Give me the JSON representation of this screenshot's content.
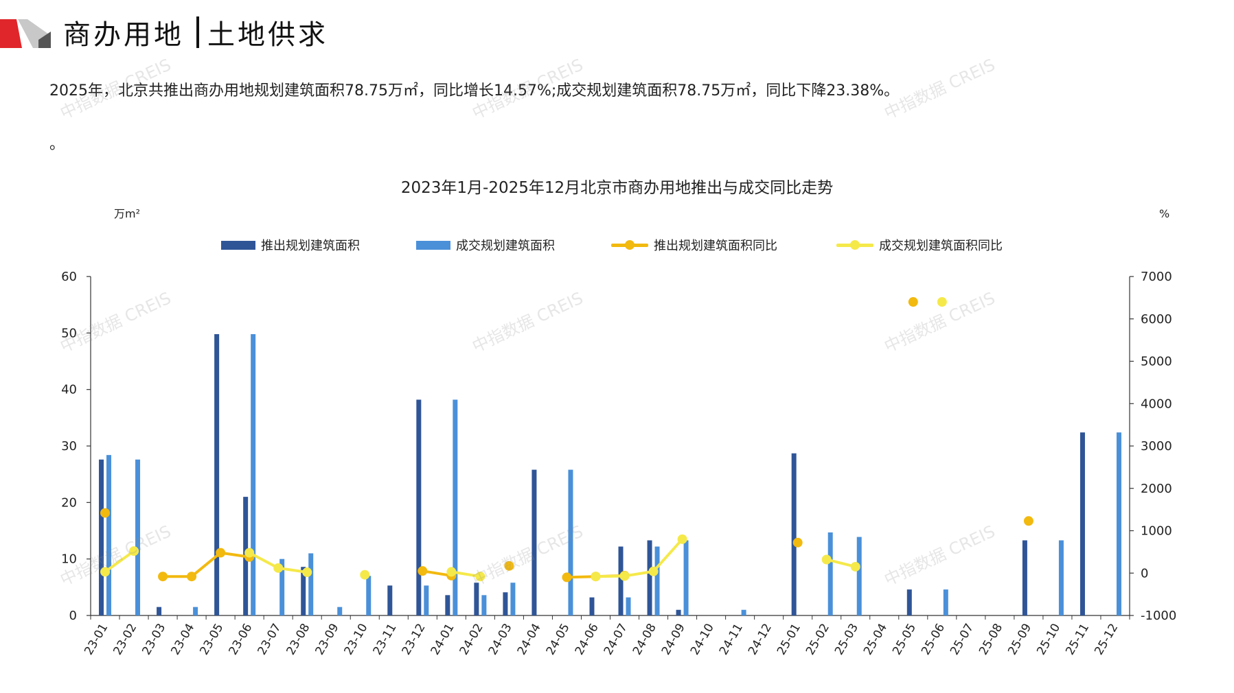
{
  "header": {
    "title_part1": "商办用地",
    "title_part2": "土地供求",
    "accent_color": "#e0262a"
  },
  "summary": "2025年，北京共推出商办用地规划建筑面积78.75万㎡，同比增长14.57%;成交规划建筑面积78.75万㎡，同比下降23.38%。",
  "note_mark": "。",
  "watermark": "中指数据 CREIS",
  "chart_data": {
    "type": "bar",
    "title": "2023年1月-2025年12月北京市商办用地推出与成交同比走势",
    "ylabel_left": "万m²",
    "ylabel_right": "%",
    "ylim_left": [
      0,
      60
    ],
    "yticks_left": [
      0,
      10,
      20,
      30,
      40,
      50,
      60
    ],
    "ylim_right": [
      -1000,
      7000
    ],
    "yticks_right": [
      -1000,
      0,
      1000,
      2000,
      3000,
      4000,
      5000,
      6000,
      7000
    ],
    "legend_position": "top",
    "categories": [
      "23-01",
      "23-02",
      "23-03",
      "23-04",
      "23-05",
      "23-06",
      "23-07",
      "23-08",
      "23-09",
      "23-10",
      "23-11",
      "23-12",
      "24-01",
      "24-02",
      "24-03",
      "24-04",
      "24-05",
      "24-06",
      "24-07",
      "24-08",
      "24-09",
      "24-10",
      "24-11",
      "24-12",
      "25-01",
      "25-02",
      "25-03",
      "25-04",
      "25-05",
      "25-06",
      "25-07",
      "25-08",
      "25-09",
      "25-10",
      "25-11",
      "25-12"
    ],
    "series": [
      {
        "name": "推出规划建筑面积",
        "type": "bar",
        "axis": "left",
        "color": "#2f5597",
        "values": [
          27.6,
          0,
          1.5,
          0,
          49.8,
          21,
          0,
          8.6,
          0,
          0,
          5.3,
          38.2,
          3.6,
          5.8,
          4.1,
          25.8,
          0,
          3.2,
          12.2,
          13.3,
          1.0,
          0,
          0,
          0,
          28.7,
          0,
          0,
          0,
          4.6,
          0,
          0,
          0,
          13.3,
          0,
          32.4,
          0
        ]
      },
      {
        "name": "成交规划建筑面积",
        "type": "bar",
        "axis": "left",
        "color": "#4a90d9",
        "values": [
          28.4,
          27.6,
          0,
          1.5,
          0,
          49.8,
          10.0,
          11.0,
          1.5,
          7.0,
          0,
          5.3,
          38.2,
          3.6,
          5.8,
          0,
          25.8,
          0,
          3.2,
          12.2,
          13.3,
          0,
          1.0,
          0,
          0,
          14.7,
          13.9,
          0,
          0,
          4.6,
          0,
          0,
          0,
          13.3,
          0,
          32.4
        ]
      },
      {
        "name": "推出规划建筑面积同比",
        "type": "line",
        "axis": "right",
        "color": "#f2b90f",
        "values": [
          1420,
          null,
          -80,
          -80,
          480,
          380,
          null,
          null,
          null,
          null,
          null,
          50,
          -60,
          null,
          170,
          null,
          -100,
          -80,
          -60,
          null,
          null,
          null,
          null,
          null,
          720,
          null,
          null,
          null,
          6400,
          null,
          null,
          null,
          1230,
          null,
          null,
          null
        ]
      },
      {
        "name": "成交规划建筑面积同比",
        "type": "line",
        "axis": "right",
        "color": "#f5e94a",
        "values": [
          30,
          520,
          null,
          null,
          null,
          480,
          120,
          20,
          null,
          -40,
          null,
          null,
          30,
          -80,
          null,
          null,
          null,
          -80,
          -70,
          40,
          800,
          null,
          null,
          null,
          null,
          320,
          150,
          null,
          null,
          6400,
          null,
          null,
          null,
          null,
          null,
          null
        ]
      }
    ]
  }
}
